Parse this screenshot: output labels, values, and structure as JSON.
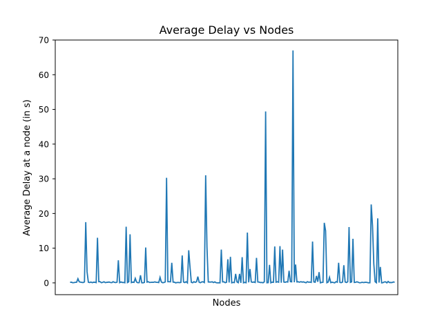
{
  "chart_data": {
    "type": "line",
    "title": "Average Delay vs Nodes",
    "xlabel": "Nodes",
    "ylabel": "Average Delay at a node (in s)",
    "ylim": [
      -3.4,
      70
    ],
    "xlim": [
      -11.4,
      251.4
    ],
    "yticks": [
      0,
      10,
      20,
      30,
      40,
      50,
      60,
      70
    ],
    "xticks_visible": false,
    "grid": false,
    "series_color": "#1f77b4",
    "spikes": [
      [
        6,
        1.2
      ],
      [
        12,
        17.5
      ],
      [
        13,
        3.2
      ],
      [
        21,
        13.0
      ],
      [
        37,
        6.5
      ],
      [
        43,
        16.2
      ],
      [
        46,
        14.0
      ],
      [
        50,
        1.3
      ],
      [
        54,
        2.2
      ],
      [
        58,
        10.2
      ],
      [
        69,
        1.6
      ],
      [
        74,
        30.3
      ],
      [
        78,
        5.8
      ],
      [
        86,
        7.9
      ],
      [
        91,
        9.4
      ],
      [
        92,
        4.5
      ],
      [
        98,
        1.8
      ],
      [
        104,
        31.0
      ],
      [
        105,
        10.3
      ],
      [
        116,
        9.6
      ],
      [
        121,
        6.8
      ],
      [
        123,
        7.5
      ],
      [
        127,
        2.6
      ],
      [
        130,
        2.6
      ],
      [
        132,
        7.4
      ],
      [
        136,
        14.5
      ],
      [
        138,
        4.0
      ],
      [
        143,
        7.2
      ],
      [
        150,
        49.4
      ],
      [
        153,
        5.2
      ],
      [
        157,
        10.5
      ],
      [
        161,
        10.6
      ],
      [
        163,
        9.6
      ],
      [
        168,
        3.5
      ],
      [
        171,
        67.0
      ],
      [
        173,
        5.3
      ],
      [
        186,
        11.9
      ],
      [
        189,
        2.0
      ],
      [
        191,
        3.1
      ],
      [
        195,
        17.3
      ],
      [
        196,
        15.0
      ],
      [
        199,
        1.6
      ],
      [
        206,
        5.8
      ],
      [
        210,
        5.1
      ],
      [
        214,
        16.1
      ],
      [
        217,
        12.7
      ],
      [
        231,
        22.6
      ],
      [
        232,
        16.5
      ],
      [
        233,
        5.5
      ],
      [
        236,
        18.6
      ],
      [
        238,
        4.6
      ],
      [
        244,
        0.4
      ]
    ]
  }
}
